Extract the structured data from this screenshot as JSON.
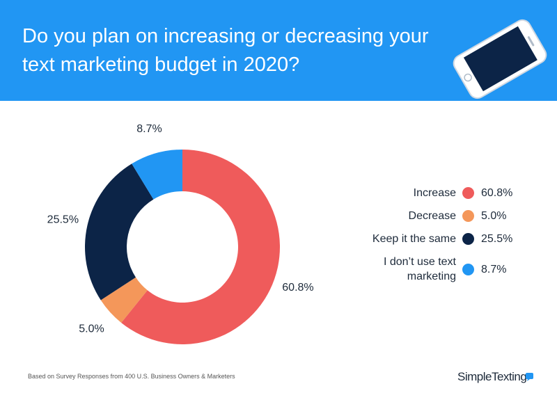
{
  "chart_data": {
    "type": "donut",
    "title": "Do you plan on increasing or decreasing your text marketing budget in 2020?",
    "categories": [
      "Increase",
      "Decrease",
      "Keep it the same",
      "I don’t use text marketing"
    ],
    "values": [
      60.8,
      5.0,
      25.5,
      8.7
    ],
    "value_labels": [
      "60.8%",
      "5.0%",
      "25.5%",
      "8.7%"
    ],
    "colors": [
      "#ef5b5b",
      "#f4975a",
      "#0c2447",
      "#2196f3"
    ],
    "footnote": "Based on Survey Responses from 400 U.S. Business Owners & Marketers",
    "brand": "SimpleTexting"
  }
}
